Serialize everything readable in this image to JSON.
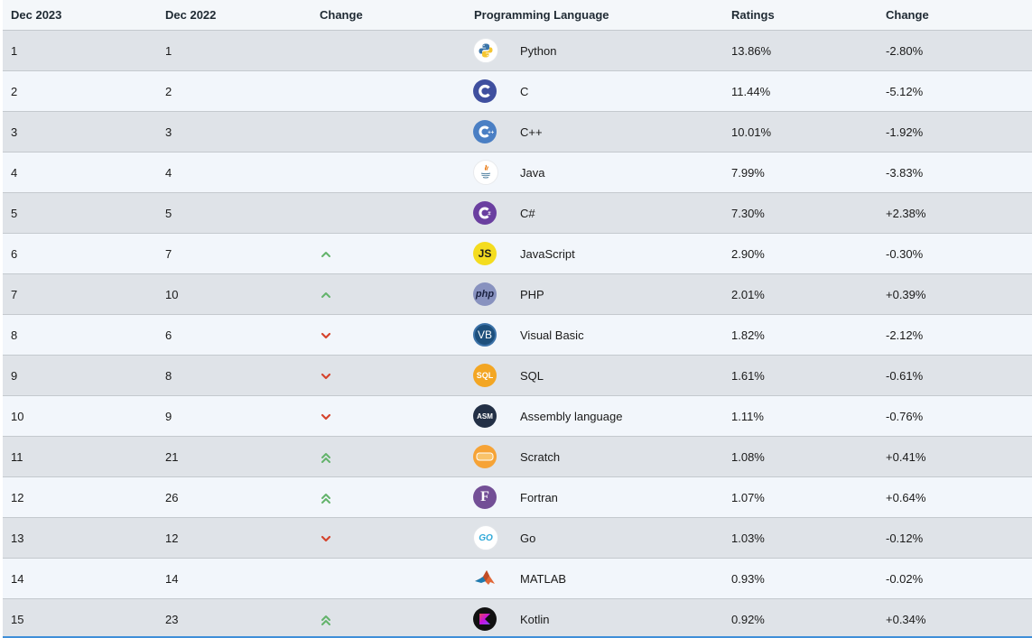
{
  "headers": {
    "current": "Dec 2023",
    "previous": "Dec 2022",
    "change": "Change",
    "language": "Programming Language",
    "ratings": "Ratings",
    "ratings_change": "Change"
  },
  "colors": {
    "row_dark": "#dfe3e8",
    "row_light": "#f2f6fb",
    "up_arrow": "#63b36b",
    "down_arrow": "#d5442d"
  },
  "rows": [
    {
      "cur": "1",
      "prev": "1",
      "trend": "none",
      "lang": "Python",
      "icon": "python-logo-icon",
      "rating": "13.86%",
      "delta": "-2.80%"
    },
    {
      "cur": "2",
      "prev": "2",
      "trend": "none",
      "lang": "C",
      "icon": "c-logo-icon",
      "rating": "11.44%",
      "delta": "-5.12%"
    },
    {
      "cur": "3",
      "prev": "3",
      "trend": "none",
      "lang": "C++",
      "icon": "cpp-logo-icon",
      "rating": "10.01%",
      "delta": "-1.92%"
    },
    {
      "cur": "4",
      "prev": "4",
      "trend": "none",
      "lang": "Java",
      "icon": "java-logo-icon",
      "rating": "7.99%",
      "delta": "-3.83%"
    },
    {
      "cur": "5",
      "prev": "5",
      "trend": "none",
      "lang": "C#",
      "icon": "csharp-logo-icon",
      "rating": "7.30%",
      "delta": "+2.38%"
    },
    {
      "cur": "6",
      "prev": "7",
      "trend": "up",
      "lang": "JavaScript",
      "icon": "javascript-logo-icon",
      "rating": "2.90%",
      "delta": "-0.30%"
    },
    {
      "cur": "7",
      "prev": "10",
      "trend": "up",
      "lang": "PHP",
      "icon": "php-logo-icon",
      "rating": "2.01%",
      "delta": "+0.39%"
    },
    {
      "cur": "8",
      "prev": "6",
      "trend": "down",
      "lang": "Visual Basic",
      "icon": "visual-basic-logo-icon",
      "rating": "1.82%",
      "delta": "-2.12%"
    },
    {
      "cur": "9",
      "prev": "8",
      "trend": "down",
      "lang": "SQL",
      "icon": "sql-logo-icon",
      "rating": "1.61%",
      "delta": "-0.61%"
    },
    {
      "cur": "10",
      "prev": "9",
      "trend": "down",
      "lang": "Assembly language",
      "icon": "assembly-logo-icon",
      "rating": "1.11%",
      "delta": "-0.76%"
    },
    {
      "cur": "11",
      "prev": "21",
      "trend": "up2",
      "lang": "Scratch",
      "icon": "scratch-logo-icon",
      "rating": "1.08%",
      "delta": "+0.41%"
    },
    {
      "cur": "12",
      "prev": "26",
      "trend": "up2",
      "lang": "Fortran",
      "icon": "fortran-logo-icon",
      "rating": "1.07%",
      "delta": "+0.64%"
    },
    {
      "cur": "13",
      "prev": "12",
      "trend": "down",
      "lang": "Go",
      "icon": "go-logo-icon",
      "rating": "1.03%",
      "delta": "-0.12%"
    },
    {
      "cur": "14",
      "prev": "14",
      "trend": "none",
      "lang": "MATLAB",
      "icon": "matlab-logo-icon",
      "rating": "0.93%",
      "delta": "-0.02%"
    },
    {
      "cur": "15",
      "prev": "23",
      "trend": "up2",
      "lang": "Kotlin",
      "icon": "kotlin-logo-icon",
      "rating": "0.92%",
      "delta": "+0.34%"
    }
  ],
  "logo_text": {
    "javascript": "JS",
    "php": "php",
    "visual_basic": "VB",
    "sql": "SQL",
    "assembly": "ASM",
    "fortran": "F",
    "go": "GO"
  }
}
